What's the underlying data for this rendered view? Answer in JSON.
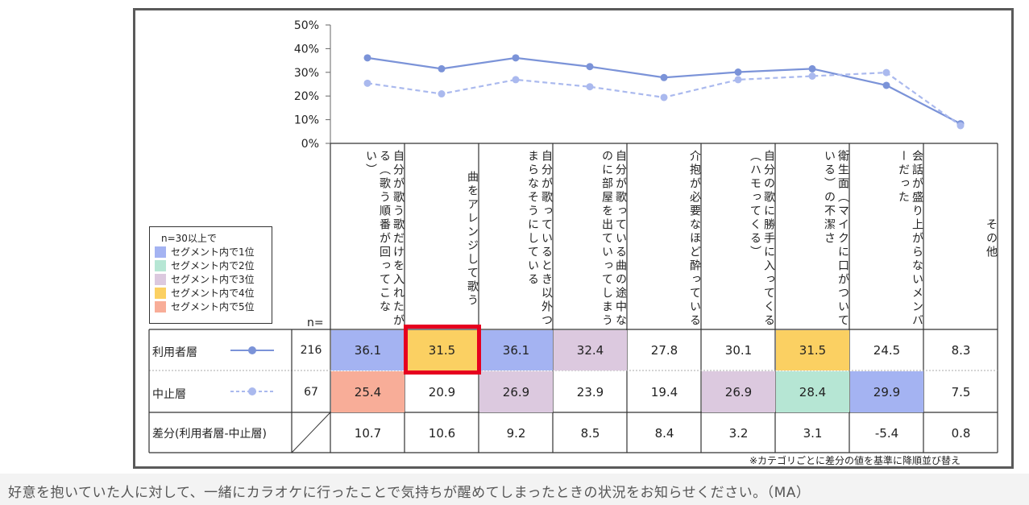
{
  "chart_data": {
    "type": "line",
    "ylim": [
      0,
      50
    ],
    "yticks": [
      "50%",
      "40%",
      "30%",
      "20%",
      "10%",
      "0%"
    ],
    "categories": [
      "自分が歌う歌だけを入れたがる（歌う順番が回ってこない）",
      "曲をアレンジして歌う",
      "自分が歌っているとき以外つまらなそうにしている",
      "自分が歌っている曲の途中なのに部屋を出ていってしまう",
      "介抱が必要なほど酔っている",
      "自分の歌に勝手に入ってくる（ハモってくる）",
      "衛生面（マイクに口がついている）の不潔さ",
      "会話が盛り上がらないメンバーだった",
      "その他"
    ],
    "series": [
      {
        "name": "利用者層",
        "n": "216",
        "color": "#7b93d8",
        "dashed": false,
        "values": [
          36.1,
          31.5,
          36.1,
          32.4,
          27.8,
          30.1,
          31.5,
          24.5,
          8.3
        ],
        "labels": [
          "36.1",
          "31.5",
          "36.1",
          "32.4",
          "27.8",
          "30.1",
          "31.5",
          "24.5",
          "8.3"
        ],
        "ranks": [
          1,
          4,
          1,
          3,
          0,
          0,
          4,
          0,
          0
        ]
      },
      {
        "name": "中止層",
        "n": "67",
        "color": "#aab9ee",
        "dashed": true,
        "values": [
          25.4,
          20.9,
          26.9,
          23.9,
          19.4,
          26.9,
          28.4,
          29.9,
          7.5
        ],
        "labels": [
          "25.4",
          "20.9",
          "26.9",
          "23.9",
          "19.4",
          "26.9",
          "28.4",
          "29.9",
          "7.5"
        ],
        "ranks": [
          5,
          0,
          3,
          0,
          0,
          3,
          2,
          1,
          0
        ]
      }
    ],
    "diff": {
      "label": "差分(利用者層-中止層)",
      "values": [
        "10.7",
        "10.6",
        "9.2",
        "8.5",
        "8.4",
        "3.2",
        "3.1",
        "-5.4",
        "0.8"
      ]
    },
    "n_header": "n=",
    "highlight": {
      "series": 0,
      "category": 1
    }
  },
  "legend": {
    "title": "n=30以上で",
    "items": [
      {
        "label": "セグメント内で1位",
        "color": "#a4b3f2"
      },
      {
        "label": "セグメント内で2位",
        "color": "#b6e6d4"
      },
      {
        "label": "セグメント内で3位",
        "color": "#dcc9df"
      },
      {
        "label": "セグメント内で4位",
        "color": "#fbd062"
      },
      {
        "label": "セグメント内で5位",
        "color": "#f8ad98"
      }
    ]
  },
  "footnote": "※カテゴリごとに差分の値を基準に降順並び替え",
  "caption": "好意を抱いていた人に対して、一緒にカラオケに行ったことで気持ちが醒めてしまったときの状況をお知らせください。（MA）"
}
